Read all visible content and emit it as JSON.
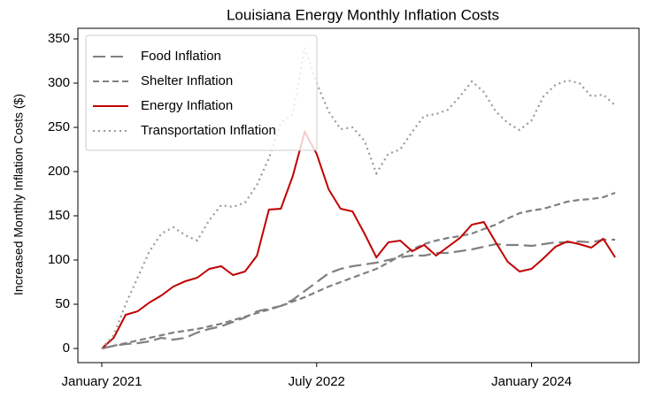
{
  "chart_data": {
    "type": "line",
    "title": "Louisiana Energy Monthly Inflation Costs",
    "ylabel": "Increased Monthly Inflation Costs ($)",
    "x": [
      "2021-01",
      "2021-02",
      "2021-03",
      "2021-04",
      "2021-05",
      "2021-06",
      "2021-07",
      "2021-08",
      "2021-09",
      "2021-10",
      "2021-11",
      "2021-12",
      "2022-01",
      "2022-02",
      "2022-03",
      "2022-04",
      "2022-05",
      "2022-06",
      "2022-07",
      "2022-08",
      "2022-09",
      "2022-10",
      "2022-11",
      "2022-12",
      "2023-01",
      "2023-02",
      "2023-03",
      "2023-04",
      "2023-05",
      "2023-06",
      "2023-07",
      "2023-08",
      "2023-09",
      "2023-10",
      "2023-11",
      "2023-12",
      "2024-01",
      "2024-02",
      "2024-03",
      "2024-04",
      "2024-05",
      "2024-06",
      "2024-07",
      "2024-08"
    ],
    "series": [
      {
        "name": "Food Inflation",
        "color": "#808080",
        "linestyle": "longdash",
        "values": [
          0,
          3,
          5,
          6,
          8,
          12,
          10,
          12,
          18,
          22,
          25,
          30,
          35,
          42,
          45,
          48,
          55,
          65,
          75,
          85,
          90,
          93,
          95,
          97,
          100,
          103,
          105,
          105,
          108,
          108,
          110,
          112,
          115,
          118,
          117,
          117,
          116,
          118,
          120,
          120,
          121,
          120,
          123,
          123
        ]
      },
      {
        "name": "Shelter Inflation",
        "color": "#808080",
        "linestyle": "dash",
        "values": [
          0,
          3,
          6,
          9,
          12,
          15,
          18,
          20,
          22,
          25,
          28,
          32,
          36,
          40,
          44,
          48,
          53,
          58,
          64,
          70,
          75,
          80,
          85,
          90,
          97,
          105,
          112,
          118,
          122,
          125,
          127,
          130,
          135,
          140,
          147,
          153,
          156,
          158,
          162,
          166,
          168,
          169,
          171,
          176
        ]
      },
      {
        "name": "Energy Inflation",
        "color": "#c00000",
        "linestyle": "solid",
        "values": [
          0,
          12,
          38,
          42,
          52,
          60,
          70,
          76,
          80,
          90,
          93,
          83,
          87,
          105,
          157,
          158,
          195,
          245,
          220,
          180,
          158,
          155,
          130,
          103,
          120,
          122,
          110,
          117,
          105,
          115,
          125,
          140,
          143,
          120,
          98,
          87,
          90,
          102,
          115,
          121,
          118,
          114,
          124,
          103
        ]
      },
      {
        "name": "Transportation Inflation",
        "color": "#999999",
        "linestyle": "dot",
        "values": [
          0,
          15,
          50,
          80,
          110,
          130,
          137,
          128,
          122,
          145,
          162,
          160,
          165,
          185,
          215,
          255,
          265,
          340,
          300,
          268,
          248,
          250,
          235,
          198,
          220,
          225,
          245,
          263,
          265,
          270,
          285,
          302,
          290,
          268,
          255,
          247,
          258,
          285,
          298,
          303,
          300,
          285,
          287,
          275
        ]
      }
    ],
    "xlim": [
      "2020-11",
      "2024-10"
    ],
    "xticks": [
      {
        "value": "2021-01",
        "label": "January 2021"
      },
      {
        "value": "2022-07",
        "label": "July 2022"
      },
      {
        "value": "2024-01",
        "label": "January 2024"
      }
    ],
    "ylim": [
      -16,
      362
    ],
    "yticks": [
      0,
      50,
      100,
      150,
      200,
      250,
      300,
      350
    ],
    "grid": false,
    "legend": "upper left"
  }
}
